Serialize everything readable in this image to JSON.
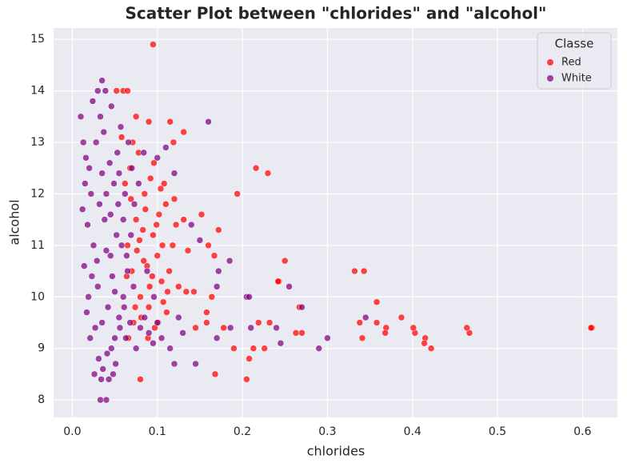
{
  "chart_data": {
    "type": "scatter",
    "title": "Scatter Plot between \"chlorides\" and \"alcohol\"",
    "x_label": "chlorides",
    "y_label": "alcohol",
    "legend_title": "Classe",
    "legend": "upper right",
    "grid": true,
    "xlim": [
      -0.022,
      0.641
    ],
    "ylim": [
      7.66,
      15.22
    ],
    "xticks": [
      {
        "value": 0,
        "label": "0.0"
      },
      0.1,
      0.2,
      0.3,
      0.4,
      0.5,
      0.6
    ],
    "yticks": [
      8,
      9,
      10,
      11,
      12,
      13,
      14,
      15
    ],
    "series": [
      {
        "name": "Red",
        "color": "#ff0000",
        "x": [
          0.065,
          0.07,
          0.075,
          0.08,
          0.085,
          0.09,
          0.095,
          0.1,
          0.105,
          0.11,
          0.068,
          0.072,
          0.078,
          0.083,
          0.088,
          0.092,
          0.097,
          0.102,
          0.107,
          0.112,
          0.066,
          0.071,
          0.076,
          0.081,
          0.086,
          0.091,
          0.096,
          0.101,
          0.106,
          0.111,
          0.064,
          0.069,
          0.074,
          0.079,
          0.084,
          0.089,
          0.094,
          0.099,
          0.104,
          0.114,
          0.118,
          0.062,
          0.058,
          0.075,
          0.09,
          0.06,
          0.065,
          0.052,
          0.08,
          0.095,
          0.611,
          0.61,
          0.467,
          0.464,
          0.422,
          0.415,
          0.414,
          0.403,
          0.401,
          0.387,
          0.369,
          0.368,
          0.358,
          0.358,
          0.343,
          0.332,
          0.341,
          0.338,
          0.25,
          0.243,
          0.242,
          0.27,
          0.263,
          0.267,
          0.23,
          0.216,
          0.194,
          0.205,
          0.168,
          0.172,
          0.167,
          0.16,
          0.152,
          0.226,
          0.213,
          0.208,
          0.232,
          0.219,
          0.19,
          0.178,
          0.158,
          0.145,
          0.131,
          0.115,
          0.119,
          0.108,
          0.12,
          0.122,
          0.131,
          0.136,
          0.125,
          0.134,
          0.143,
          0.158,
          0.164
        ],
        "y": [
          11.0,
          10.5,
          11.5,
          10.0,
          12.0,
          9.8,
          11.2,
          10.8,
          10.3,
          11.8,
          12.5,
          9.5,
          12.8,
          11.3,
          10.6,
          12.3,
          9.4,
          11.6,
          9.9,
          10.1,
          9.2,
          13.0,
          10.9,
          9.6,
          11.7,
          10.2,
          12.6,
          9.5,
          11.0,
          9.7,
          10.4,
          11.9,
          9.8,
          11.1,
          10.7,
          9.2,
          10.4,
          11.4,
          12.1,
          10.5,
          11.0,
          12.2,
          13.1,
          13.5,
          13.4,
          14.0,
          14.0,
          14.0,
          8.4,
          14.9,
          9.4,
          9.4,
          9.3,
          9.4,
          9.0,
          9.2,
          9.1,
          9.3,
          9.4,
          9.6,
          9.4,
          9.3,
          9.5,
          9.9,
          10.5,
          10.5,
          9.2,
          9.5,
          10.7,
          10.3,
          10.3,
          9.3,
          9.3,
          9.8,
          12.4,
          12.5,
          12.0,
          8.4,
          8.5,
          11.3,
          10.8,
          11.0,
          11.6,
          9.0,
          9.0,
          8.8,
          9.5,
          9.5,
          9.0,
          9.4,
          9.5,
          9.4,
          13.2,
          13.4,
          13.0,
          12.2,
          11.9,
          11.4,
          11.5,
          10.9,
          10.2,
          10.1,
          10.1,
          9.7,
          10.0
        ]
      },
      {
        "name": "White",
        "color": "#800080",
        "x": [
          0.02,
          0.025,
          0.03,
          0.035,
          0.04,
          0.045,
          0.05,
          0.028,
          0.033,
          0.038,
          0.042,
          0.047,
          0.052,
          0.055,
          0.06,
          0.022,
          0.027,
          0.031,
          0.036,
          0.041,
          0.046,
          0.051,
          0.056,
          0.061,
          0.065,
          0.018,
          0.015,
          0.014,
          0.019,
          0.024,
          0.03,
          0.037,
          0.044,
          0.049,
          0.054,
          0.058,
          0.063,
          0.068,
          0.072,
          0.075,
          0.08,
          0.085,
          0.09,
          0.095,
          0.1,
          0.105,
          0.07,
          0.066,
          0.062,
          0.057,
          0.013,
          0.016,
          0.021,
          0.026,
          0.034,
          0.043,
          0.048,
          0.039,
          0.046,
          0.053,
          0.032,
          0.029,
          0.023,
          0.017,
          0.035,
          0.04,
          0.045,
          0.05,
          0.055,
          0.06,
          0.064,
          0.069,
          0.073,
          0.078,
          0.084,
          0.088,
          0.096,
          0.11,
          0.16,
          0.14,
          0.15,
          0.17,
          0.172,
          0.185,
          0.205,
          0.208,
          0.255,
          0.27,
          0.29,
          0.3,
          0.24,
          0.245,
          0.345,
          0.21,
          0.186,
          0.12,
          0.145,
          0.033,
          0.04,
          0.01,
          0.035,
          0.012,
          0.17,
          0.13,
          0.115,
          0.125,
          0.12,
          0.1
        ],
        "y": [
          12.5,
          11.0,
          10.2,
          9.5,
          12.0,
          10.8,
          9.2,
          13.0,
          13.5,
          11.5,
          9.8,
          10.4,
          11.2,
          9.6,
          10.0,
          12.0,
          9.4,
          8.8,
          8.6,
          8.9,
          9.0,
          8.7,
          9.4,
          9.8,
          10.5,
          11.4,
          12.2,
          10.6,
          10.0,
          13.8,
          14.0,
          13.2,
          12.6,
          12.2,
          11.8,
          11.0,
          9.2,
          9.5,
          10.2,
          9.0,
          9.4,
          9.6,
          9.3,
          9.1,
          9.5,
          9.2,
          12.5,
          13.0,
          12.0,
          13.3,
          13.0,
          12.7,
          9.2,
          8.5,
          8.4,
          8.4,
          8.5,
          14.0,
          13.7,
          12.8,
          11.8,
          10.7,
          10.4,
          9.7,
          12.4,
          10.9,
          11.6,
          10.1,
          12.4,
          11.5,
          10.8,
          11.2,
          11.8,
          12.2,
          12.8,
          10.5,
          10.0,
          12.9,
          13.4,
          11.4,
          11.1,
          10.2,
          10.5,
          10.7,
          10.0,
          10.0,
          10.2,
          9.8,
          9.0,
          9.2,
          9.4,
          9.1,
          9.6,
          9.4,
          9.4,
          8.7,
          8.7,
          8.0,
          8.0,
          13.5,
          14.2,
          11.7,
          9.2,
          9.3,
          9.0,
          9.6,
          12.4,
          12.7
        ]
      }
    ]
  }
}
